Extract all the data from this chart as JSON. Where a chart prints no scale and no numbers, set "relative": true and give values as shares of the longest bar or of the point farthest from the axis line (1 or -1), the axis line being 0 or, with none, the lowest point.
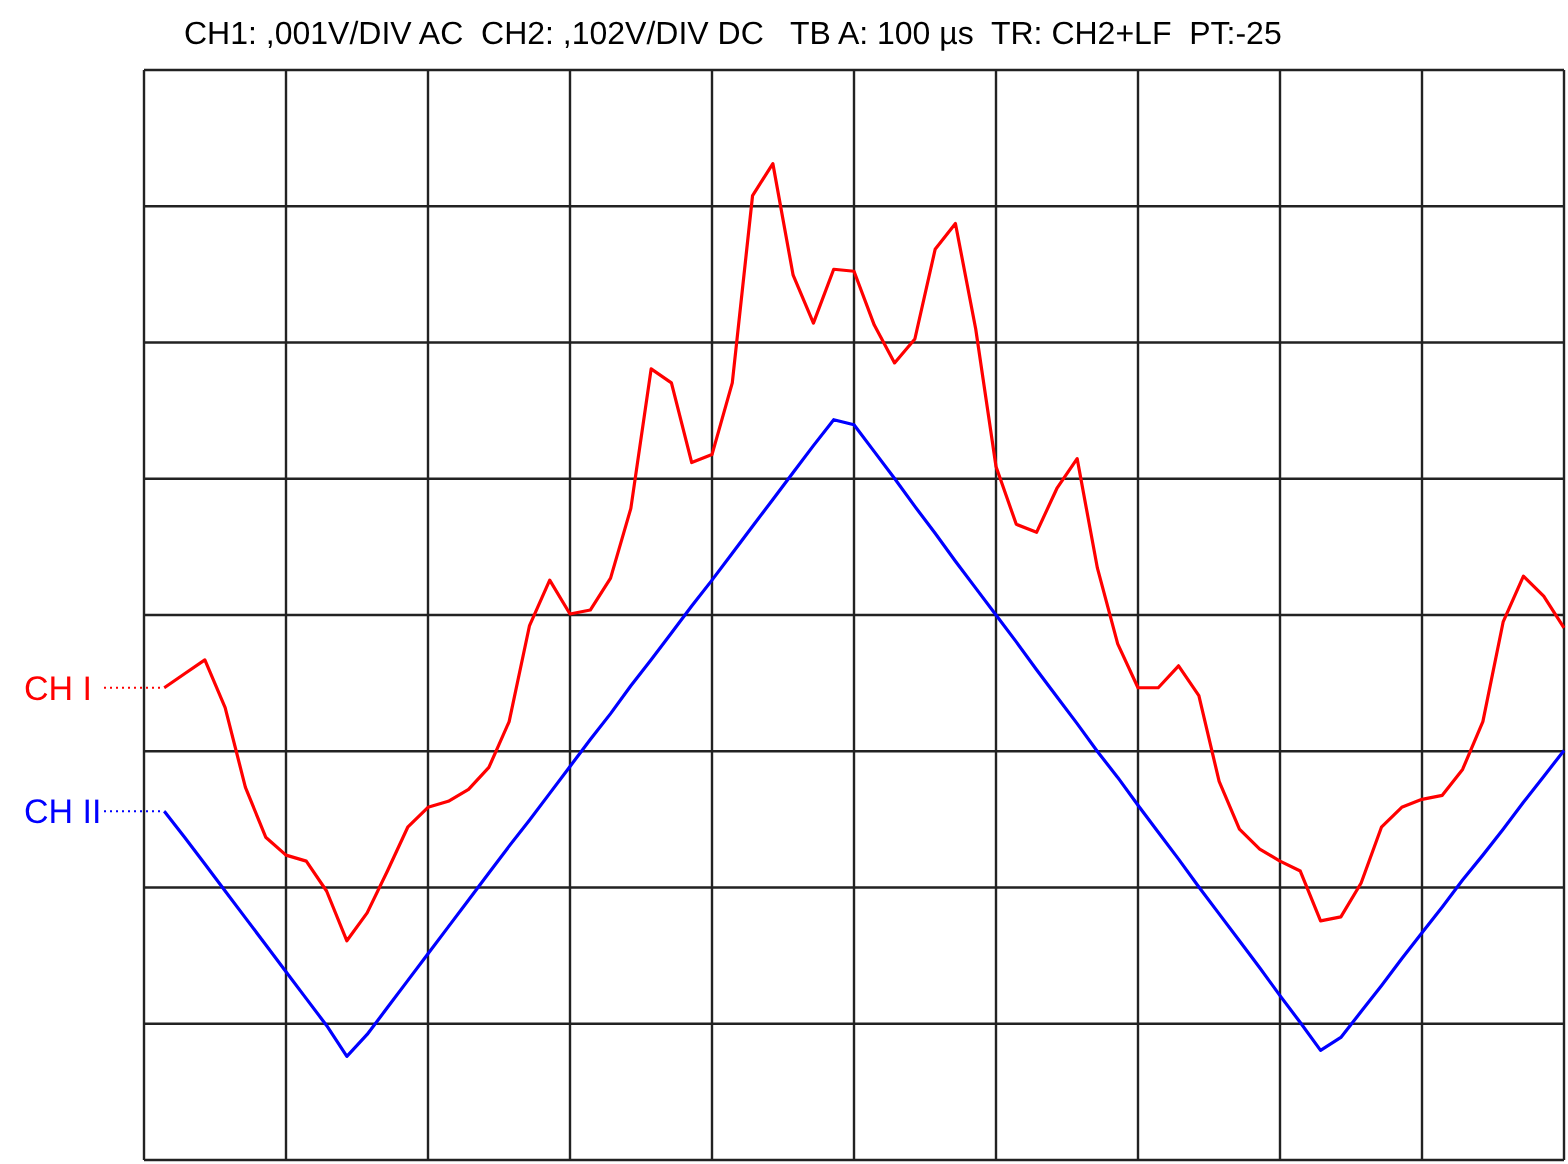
{
  "chart_data": {
    "type": "line",
    "title": "CH1: ,001V/DIV AC  CH2: ,102V/DIV DC   TB A: 100 µs  TR: CH2+LF  PT:-25",
    "categories": [
      null,
      null,
      null,
      null,
      null,
      null,
      null,
      null,
      null,
      null,
      null,
      null,
      null,
      null,
      null,
      null,
      null,
      null,
      null,
      null,
      null,
      null,
      null,
      null,
      null,
      null,
      null,
      null,
      null,
      null,
      null,
      null,
      null,
      null,
      null,
      null,
      null,
      null,
      null,
      null,
      null,
      null,
      null,
      null,
      null,
      null,
      null,
      null,
      null,
      null,
      null,
      null,
      null,
      null,
      null,
      null,
      null,
      null,
      null,
      null,
      null,
      null,
      null,
      null,
      null,
      null,
      null,
      null,
      null,
      null,
      null
    ],
    "relative": true,
    "grid": true,
    "legend": "left",
    "marker": "none",
    "line_style": "solid",
    "series": [
      {
        "name": "CH I",
        "color": "#ff0000",
        "values": [
          null,
          0.474,
          0.488,
          0.502,
          0.454,
          0.374,
          0.324,
          0.306,
          0.3,
          0.27,
          0.22,
          0.248,
          0.29,
          0.334,
          0.354,
          0.36,
          0.372,
          0.394,
          0.44,
          0.536,
          0.582,
          0.548,
          0.552,
          0.584,
          0.654,
          0.794,
          0.78,
          0.7,
          0.708,
          0.78,
          0.968,
          1,
          0.888,
          0.84,
          0.894,
          0.892,
          0.838,
          0.8,
          0.824,
          0.914,
          0.94,
          0.834,
          0.696,
          0.638,
          0.63,
          0.674,
          0.704,
          0.594,
          0.518,
          0.474,
          0.474,
          0.496,
          0.466,
          0.38,
          0.332,
          0.312,
          0.3,
          0.29,
          0.24,
          0.244,
          0.278,
          0.334,
          0.354,
          0.362,
          0.366,
          0.392,
          0.44,
          0.54,
          0.586,
          0.566,
          0.534
        ]
      },
      {
        "name": "CH II",
        "color": "#0000ff",
        "values": [
          null,
          0.35,
          0.324,
          0.297,
          0.27,
          0.243,
          0.216,
          0.189,
          0.162,
          0.135,
          0.104,
          0.126,
          0.153,
          0.18,
          0.207,
          0.234,
          0.261,
          0.288,
          0.315,
          0.341,
          0.368,
          0.395,
          0.422,
          0.448,
          0.476,
          0.502,
          0.529,
          0.556,
          0.582,
          0.609,
          0.636,
          0.663,
          0.69,
          0.717,
          0.743,
          0.738,
          0.711,
          0.684,
          0.656,
          0.629,
          0.601,
          0.574,
          0.547,
          0.52,
          0.492,
          0.465,
          0.438,
          0.41,
          0.384,
          0.356,
          0.329,
          0.302,
          0.274,
          0.247,
          0.22,
          0.193,
          0.165,
          0.138,
          0.11,
          0.123,
          0.149,
          0.175,
          0.202,
          0.228,
          0.254,
          0.281,
          0.306,
          0.332,
          0.359,
          0.385,
          0.411
        ]
      }
    ]
  }
}
